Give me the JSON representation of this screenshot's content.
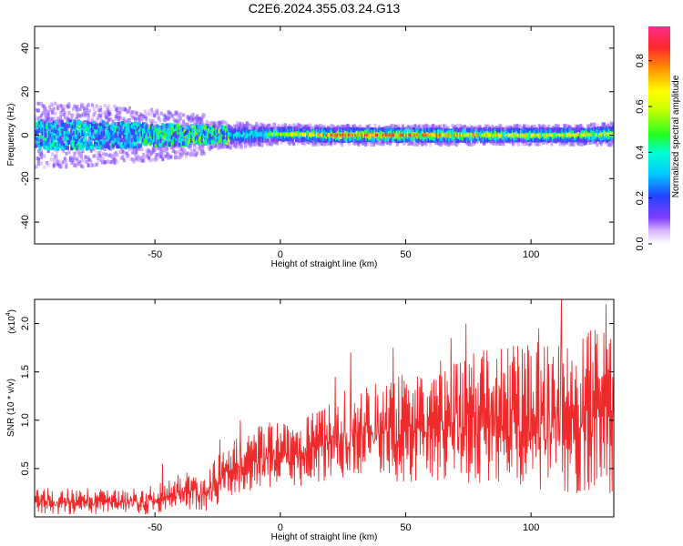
{
  "title": "C2E6.2024.355.03.24.G13",
  "chart_data": [
    {
      "type": "heatmap",
      "xlabel": "Height of straight line (km)",
      "ylabel": "Frequency (Hz)",
      "xlim": [
        -98,
        133
      ],
      "ylim": [
        -50,
        50
      ],
      "xticks": [
        "-50",
        "0",
        "50",
        "100"
      ],
      "xtick_values": [
        -50,
        0,
        50,
        100
      ],
      "yticks": [
        "-40",
        "-20",
        "0",
        "20",
        "40"
      ],
      "ytick_values": [
        -40,
        -20,
        0,
        20,
        40
      ],
      "colorbar": {
        "label": "Normalized spectral amplitude",
        "range": [
          0,
          0.95
        ],
        "ticks": [
          "0.0",
          "0.2",
          "0.4",
          "0.6",
          "0.8"
        ],
        "tick_values": [
          0,
          0.2,
          0.4,
          0.6,
          0.8
        ]
      },
      "ridge": {
        "x": [
          -98,
          -80,
          -60,
          -40,
          -20,
          0,
          20,
          40,
          60,
          80,
          100,
          120,
          133
        ],
        "center_hz": [
          0,
          0,
          0,
          0,
          0,
          0.5,
          0,
          0,
          0,
          0,
          0,
          0,
          0.5
        ],
        "half_width_hz": [
          7,
          7,
          6,
          5,
          4,
          3,
          3,
          3,
          3,
          3,
          3,
          3,
          3.5
        ],
        "peak_amplitude": [
          0.3,
          0.3,
          0.3,
          0.4,
          0.45,
          0.6,
          0.85,
          0.9,
          0.85,
          0.75,
          0.7,
          0.7,
          0.7
        ]
      }
    },
    {
      "type": "line",
      "xlabel": "Height of straight line (km)",
      "ylabel": "SNR (10 * v/v)",
      "multiplier": "(x10",
      "multiplier_exp": "4",
      "multiplier_close": ")",
      "xlim": [
        -98,
        133
      ],
      "ylim": [
        0,
        2.25
      ],
      "xticks": [
        "-50",
        "0",
        "50",
        "100"
      ],
      "xtick_values": [
        -50,
        0,
        50,
        100
      ],
      "yticks": [
        "0.5",
        "1.0",
        "1.5",
        "2.0"
      ],
      "ytick_values": [
        0.5,
        1.0,
        1.5,
        2.0
      ],
      "series": [
        {
          "color": "#ee2a2a",
          "envelope": {
            "x": [
              -98,
              -75,
              -55,
              -40,
              -27,
              -23,
              -15,
              -5,
              5,
              15,
              25,
              35,
              50,
              65,
              75,
              85,
              100,
              110,
              120,
              133
            ],
            "low": [
              0.02,
              0.02,
              0.02,
              0.05,
              0.05,
              0.2,
              0.25,
              0.3,
              0.3,
              0.35,
              0.4,
              0.4,
              0.35,
              0.35,
              0.35,
              0.35,
              0.3,
              0.2,
              0.2,
              0.25
            ],
            "high": [
              0.3,
              0.3,
              0.3,
              0.45,
              0.55,
              0.75,
              0.85,
              1.0,
              1.0,
              1.1,
              1.3,
              1.4,
              1.5,
              1.65,
              1.7,
              1.75,
              1.8,
              1.85,
              1.9,
              2.0
            ],
            "peaks_x": [
              -47,
              -24,
              -16,
              22,
              28,
              45,
              68,
              74,
              103,
              112,
              130
            ],
            "peaks_y": [
              0.55,
              0.8,
              1.0,
              1.45,
              1.7,
              1.75,
              1.85,
              2.0,
              1.95,
              2.25,
              2.2
            ]
          }
        }
      ]
    }
  ]
}
